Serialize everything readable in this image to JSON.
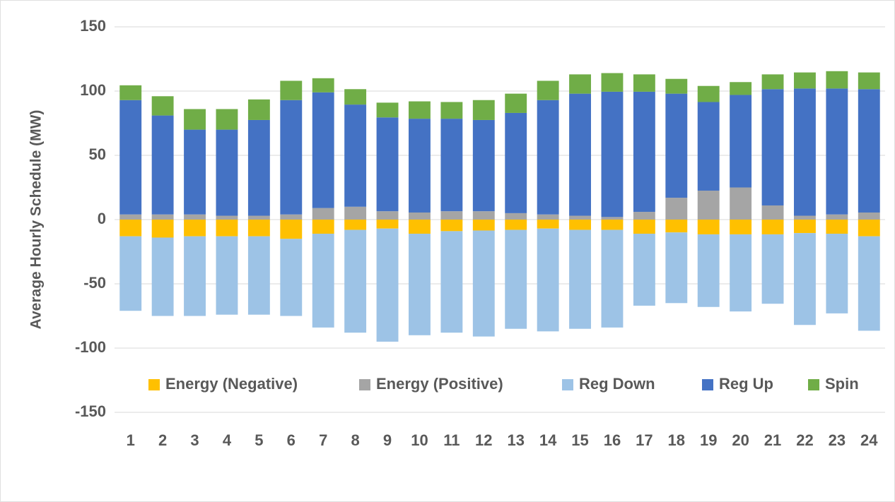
{
  "chart_data": {
    "type": "bar",
    "stacked": true,
    "y_label": "Average Hourly Schedule (MW)",
    "categories": [
      "1",
      "2",
      "3",
      "4",
      "5",
      "6",
      "7",
      "8",
      "9",
      "10",
      "11",
      "12",
      "13",
      "14",
      "15",
      "16",
      "17",
      "18",
      "19",
      "20",
      "21",
      "22",
      "23",
      "24"
    ],
    "series": [
      {
        "name": "Energy (Negative)",
        "color": "#ffc000",
        "values": [
          -13,
          -14,
          -13,
          -13,
          -13,
          -15,
          -11,
          -8,
          -7,
          -11,
          -9,
          -8.5,
          -8,
          -7,
          -8,
          -8,
          -11,
          -10,
          -11.5,
          -11.5,
          -11.5,
          -10.5,
          -11,
          -13
        ]
      },
      {
        "name": "Energy (Positive)",
        "color": "#a5a5a5",
        "values": [
          4,
          4,
          4,
          3,
          3,
          4,
          9,
          10,
          6.5,
          5.5,
          6.5,
          6.5,
          5,
          4,
          3,
          2,
          6,
          17,
          22.5,
          25,
          11,
          3,
          4,
          5.5
        ]
      },
      {
        "name": "Reg Down",
        "color": "#9dc3e6",
        "values": [
          -58,
          -61,
          -62,
          -61,
          -61,
          -60,
          -73,
          -80,
          -88,
          -79,
          -79,
          -82.5,
          -77,
          -80,
          -77,
          -76,
          -56,
          -55,
          -56.5,
          -60,
          -54,
          -71.5,
          -62,
          -73.5
        ]
      },
      {
        "name": "Reg Up",
        "color": "#4472c4",
        "values": [
          89,
          77,
          66,
          67,
          74.5,
          89,
          90,
          79.5,
          73,
          73,
          72,
          71,
          78,
          89,
          95,
          97.5,
          93.5,
          81,
          69,
          72,
          90.5,
          99,
          98,
          96
        ]
      },
      {
        "name": "Spin",
        "color": "#70ad47",
        "values": [
          11.5,
          15,
          16,
          16,
          16,
          15,
          11,
          12,
          11.5,
          13.5,
          13,
          15.5,
          15,
          15,
          15,
          14.5,
          13.5,
          11.5,
          12.5,
          10,
          11.5,
          12.5,
          13.5,
          13
        ]
      }
    ],
    "ylim": [
      -150,
      150
    ],
    "yticks": [
      -150,
      -100,
      -50,
      0,
      50,
      100,
      150
    ],
    "grid": true,
    "legend": "inside-bottom"
  }
}
